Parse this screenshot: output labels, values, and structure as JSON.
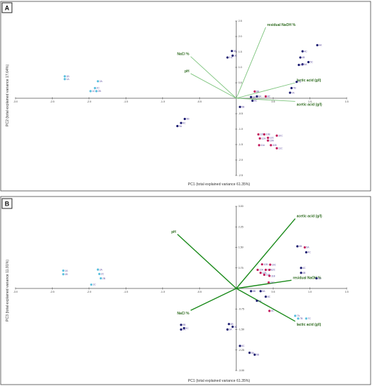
{
  "chart_data": [
    {
      "type": "scatter",
      "panel_label": "A",
      "title": "",
      "xlabel": "PC1 (total explained variance 61.35%)",
      "ylabel": "PC2 (total explained variance 17.64%)",
      "xlim": [
        -3.0,
        1.5
      ],
      "ylim": [
        -2.5,
        2.5
      ],
      "x_ticks": [
        "-3.0",
        "-2.5",
        "-2.0",
        "-1.5",
        "-1.0",
        "-0.5",
        "0.5",
        "1.0",
        "1.5"
      ],
      "x_tick_values": [
        -3.0,
        -2.5,
        -2.0,
        -1.5,
        -1.0,
        -0.5,
        0.5,
        1.0,
        1.5
      ],
      "y_ticks": [
        "2.5",
        "2.0",
        "1.5",
        "1.0",
        "0.5",
        "-0.5",
        "-1.0",
        "-1.5",
        "-2.0",
        "-2.5"
      ],
      "y_tick_values": [
        2.5,
        2.0,
        1.5,
        1.0,
        0.5,
        -0.5,
        -1.0,
        -1.5,
        -2.0,
        -2.5
      ],
      "grid": false,
      "vector_color": "#7cc47c",
      "vectors": [
        {
          "label": "residual NaOH %",
          "x": 0.4,
          "y": 2.3
        },
        {
          "label": "NaCl %",
          "x": -0.62,
          "y": 1.35
        },
        {
          "label": "pH",
          "x": -0.62,
          "y": 0.8
        },
        {
          "label": "lactic acid (g/l)",
          "x": 0.8,
          "y": 0.5
        },
        {
          "label": "acetic acid (g/l)",
          "x": 0.8,
          "y": -0.1
        }
      ],
      "points": [
        {
          "label": "1A",
          "x": -2.33,
          "y": 0.62,
          "color": "#5bc0de"
        },
        {
          "label": "1B",
          "x": -2.33,
          "y": 0.71,
          "color": "#5bc0de"
        },
        {
          "label": "2A",
          "x": -1.88,
          "y": 0.55,
          "color": "#5bc0de"
        },
        {
          "label": "2C",
          "x": -1.92,
          "y": 0.33,
          "color": "#5bc0de"
        },
        {
          "label": "1C",
          "x": -1.98,
          "y": 0.23,
          "color": "#5bc0de"
        },
        {
          "label": "2B",
          "x": -1.9,
          "y": 0.23,
          "color": "#5bc0de"
        },
        {
          "label": "3B",
          "x": -0.06,
          "y": 1.53,
          "color": "#1a1a70"
        },
        {
          "label": "3C",
          "x": -0.05,
          "y": 1.38,
          "color": "#1a1a70"
        },
        {
          "label": "3 A",
          "x": -0.12,
          "y": 1.32,
          "color": "#1a1a70"
        },
        {
          "label": "4A",
          "x": 1.1,
          "y": 1.72,
          "color": "#1a1a70"
        },
        {
          "label": "4C",
          "x": 0.9,
          "y": 1.52,
          "color": "#1a1a70"
        },
        {
          "label": "4B",
          "x": 0.87,
          "y": 1.32,
          "color": "#1a1a70"
        },
        {
          "label": "5C",
          "x": 0.98,
          "y": 1.17,
          "color": "#1a1a70"
        },
        {
          "label": "5A",
          "x": 0.9,
          "y": 1.1,
          "color": "#1a1a70"
        },
        {
          "label": "6B",
          "x": 0.85,
          "y": 1.08,
          "color": "#1a1a70"
        },
        {
          "label": "7C",
          "x": 0.82,
          "y": 0.53,
          "color": "#1a1a70"
        },
        {
          "label": "7B",
          "x": 0.75,
          "y": 0.33,
          "color": "#1a1a70"
        },
        {
          "label": "7A",
          "x": 0.73,
          "y": 0.18,
          "color": "#1a1a70"
        },
        {
          "label": "8B",
          "x": 0.25,
          "y": 0.22,
          "color": "#c2185b"
        },
        {
          "label": "8A",
          "x": 0.28,
          "y": 0.06,
          "color": "#1a1a70"
        },
        {
          "label": "8C",
          "x": 0.4,
          "y": 0.06,
          "color": "#c2185b"
        },
        {
          "label": "6A",
          "x": 0.2,
          "y": 0.04,
          "color": "#1a1a70"
        },
        {
          "label": "6C",
          "x": 0.22,
          "y": -0.08,
          "color": "#1a1a70"
        },
        {
          "label": "5B",
          "x": 0.05,
          "y": -0.28,
          "color": "#1a1a70"
        },
        {
          "label": "9B",
          "x": -0.7,
          "y": -0.67,
          "color": "#1a1a70"
        },
        {
          "label": "9C",
          "x": -0.75,
          "y": -0.8,
          "color": "#1a1a70"
        },
        {
          "label": "9A",
          "x": -0.8,
          "y": -0.9,
          "color": "#1a1a70"
        },
        {
          "label": "12B",
          "x": 0.3,
          "y": -1.17,
          "color": "#c2185b"
        },
        {
          "label": "10B",
          "x": 0.38,
          "y": -1.17,
          "color": "#c2185b"
        },
        {
          "label": "10C",
          "x": 0.55,
          "y": -1.21,
          "color": "#c2185b"
        },
        {
          "label": "12A",
          "x": 0.32,
          "y": -1.3,
          "color": "#c2185b"
        },
        {
          "label": "12C",
          "x": 0.43,
          "y": -1.28,
          "color": "#c2185b"
        },
        {
          "label": "10A",
          "x": 0.43,
          "y": -1.37,
          "color": "#c2185b"
        },
        {
          "label": "11A",
          "x": 0.31,
          "y": -1.52,
          "color": "#c2185b"
        },
        {
          "label": "11B",
          "x": 0.47,
          "y": -1.52,
          "color": "#c2185b"
        },
        {
          "label": "11C",
          "x": 0.55,
          "y": -1.62,
          "color": "#c2185b"
        }
      ]
    },
    {
      "type": "scatter",
      "panel_label": "B",
      "title": "",
      "xlabel": "PC1 (total explained variance 61.35%)",
      "ylabel": "PC3 (total explained variance 11.91%)",
      "xlim": [
        -3.0,
        1.5
      ],
      "ylim": [
        -3.0,
        3.0
      ],
      "x_ticks": [
        "-3.0",
        "-2.5",
        "-2.0",
        "-1.5",
        "-1.0",
        "-0.5",
        "0.5",
        "1.0",
        "1.5"
      ],
      "x_tick_values": [
        -3.0,
        -2.5,
        -2.0,
        -1.5,
        -1.0,
        -0.5,
        0.5,
        1.0,
        1.5
      ],
      "y_ticks": [
        "3.00",
        "2.25",
        "1.50",
        "0.75",
        "-0.75",
        "-1.50",
        "-2.25",
        "-3.00"
      ],
      "y_tick_values": [
        3.0,
        2.25,
        1.5,
        0.75,
        -0.75,
        -1.5,
        -2.25,
        -3.0
      ],
      "grid": false,
      "vector_color": "#1a8a1a",
      "vectors": [
        {
          "label": "acetic acid (g/l)",
          "x": 0.8,
          "y": 2.55
        },
        {
          "label": "pH",
          "x": -0.8,
          "y": 1.98
        },
        {
          "label": "residual NaOH %",
          "x": 0.75,
          "y": 0.3
        },
        {
          "label": "NaCl %",
          "x": -0.62,
          "y": -0.8
        },
        {
          "label": "lactic acid (g/l)",
          "x": 0.8,
          "y": -1.2
        }
      ],
      "points": [
        {
          "label": "1A",
          "x": -2.35,
          "y": 0.65,
          "color": "#5bc0de"
        },
        {
          "label": "1B",
          "x": -2.35,
          "y": 0.52,
          "color": "#5bc0de"
        },
        {
          "label": "2A",
          "x": -1.88,
          "y": 0.69,
          "color": "#5bc0de"
        },
        {
          "label": "2C",
          "x": -1.86,
          "y": 0.53,
          "color": "#5bc0de"
        },
        {
          "label": "2B",
          "x": -1.84,
          "y": 0.37,
          "color": "#5bc0de"
        },
        {
          "label": "1C",
          "x": -1.97,
          "y": 0.14,
          "color": "#5bc0de"
        },
        {
          "label": "6B",
          "x": 0.83,
          "y": 1.54,
          "color": "#1a1a70"
        },
        {
          "label": "5A",
          "x": 0.93,
          "y": 1.5,
          "color": "#c2185b"
        },
        {
          "label": "4C",
          "x": 0.95,
          "y": 1.32,
          "color": "#1a1a70"
        },
        {
          "label": "10C",
          "x": 0.46,
          "y": 0.87,
          "color": "#c2185b"
        },
        {
          "label": "10B",
          "x": 0.35,
          "y": 0.88,
          "color": "#c2185b"
        },
        {
          "label": "12A",
          "x": 0.29,
          "y": 0.68,
          "color": "#c2185b"
        },
        {
          "label": "10A",
          "x": 0.4,
          "y": 0.68,
          "color": "#c2185b"
        },
        {
          "label": "12C",
          "x": 0.45,
          "y": 0.68,
          "color": "#c2185b"
        },
        {
          "label": "12B",
          "x": 0.33,
          "y": 0.57,
          "color": "#c2185b"
        },
        {
          "label": "11A",
          "x": 0.38,
          "y": 0.5,
          "color": "#c2185b"
        },
        {
          "label": "11B",
          "x": 0.45,
          "y": 0.46,
          "color": "#c2185b"
        },
        {
          "label": "4C",
          "x": 0.88,
          "y": 0.75,
          "color": "#1a1a70"
        },
        {
          "label": "4B",
          "x": 0.88,
          "y": 0.57,
          "color": "#1a1a70"
        },
        {
          "label": "4A",
          "x": 1.09,
          "y": 0.37,
          "color": "#1a1a70"
        },
        {
          "label": "11C",
          "x": 0.44,
          "y": 0.22,
          "color": "#c2185b"
        },
        {
          "label": "8B",
          "x": 0.2,
          "y": -0.1,
          "color": "#1a1a70"
        },
        {
          "label": "8A",
          "x": 0.33,
          "y": -0.1,
          "color": "#1a1a70"
        },
        {
          "label": "8C",
          "x": 0.4,
          "y": -0.3,
          "color": "#1a1a70"
        },
        {
          "label": "6A",
          "x": 0.28,
          "y": -0.45,
          "color": "#1a1a70"
        },
        {
          "label": "3C",
          "x": 0.45,
          "y": -0.82,
          "color": "#c2185b"
        },
        {
          "label": "7A",
          "x": 0.8,
          "y": -1.0,
          "color": "#5bc0de"
        },
        {
          "label": "7B",
          "x": 0.84,
          "y": -1.1,
          "color": "#5bc0de"
        },
        {
          "label": "7C",
          "x": 0.95,
          "y": -1.1,
          "color": "#5bc0de"
        },
        {
          "label": "9B",
          "x": -0.75,
          "y": -1.33,
          "color": "#1a1a70"
        },
        {
          "label": "3B",
          "x": -0.1,
          "y": -1.3,
          "color": "#1a1a70"
        },
        {
          "label": "9C",
          "x": -0.71,
          "y": -1.45,
          "color": "#1a1a70"
        },
        {
          "label": "9A",
          "x": -0.75,
          "y": -1.5,
          "color": "#1a1a70"
        },
        {
          "label": "3C",
          "x": -0.05,
          "y": -1.4,
          "color": "#1a1a70"
        },
        {
          "label": "3A",
          "x": -0.12,
          "y": -1.5,
          "color": "#1a1a70"
        },
        {
          "label": "5C",
          "x": 0.05,
          "y": -2.1,
          "color": "#1a1a70"
        },
        {
          "label": "5A",
          "x": 0.18,
          "y": -2.35,
          "color": "#1a1a70"
        },
        {
          "label": "5B",
          "x": 0.25,
          "y": -2.42,
          "color": "#1a1a70"
        }
      ]
    }
  ]
}
